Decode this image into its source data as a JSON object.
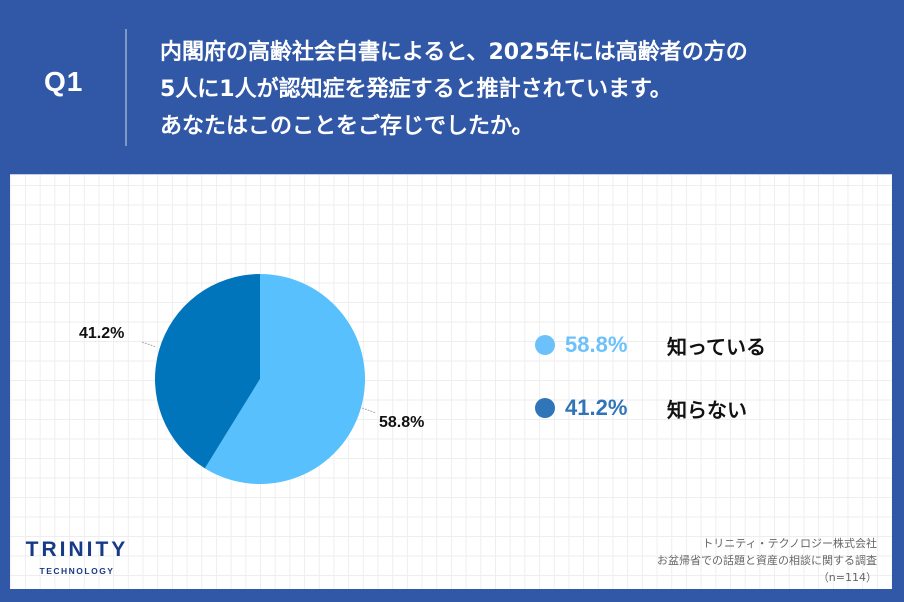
{
  "header": {
    "question_label": "Q1",
    "question_lines": [
      "内閣府の高齢社会白書によると、2025年には高齢者の方の",
      "5人に1人が認知症を発症すると推計されています。",
      "あなたはこのことをご存じでしたか。"
    ]
  },
  "chart_data": {
    "type": "pie",
    "title": "内閣府の高齢社会白書によると、2025年には高齢者の方の5人に1人が認知症を発症すると推計されています。あなたはこのことをご存じでしたか。",
    "categories": [
      "知っている",
      "知らない"
    ],
    "values": [
      58.8,
      41.2
    ],
    "unit": "%",
    "colors": [
      "#57c0fd",
      "#0075bb"
    ],
    "data_labels": [
      "58.8%",
      "41.2%"
    ],
    "legend_position": "right",
    "start_angle_deg": 0,
    "direction": "clockwise",
    "n": 114
  },
  "pie": {
    "labels": {
      "known": "58.8%",
      "unknown": "41.2%"
    }
  },
  "legend": {
    "items": [
      {
        "pct": "58.8%",
        "label": "知っている",
        "color": "#6cc1fb"
      },
      {
        "pct": "41.2%",
        "label": "知らない",
        "color": "#2f75b8"
      }
    ]
  },
  "logo": {
    "main": "TRINITY",
    "sub": "TECHNOLOGY"
  },
  "source": {
    "company": "トリニティ・テクノロジー株式会社",
    "survey": "お盆帰省での話題と資産の相談に関する調査",
    "sample": "（n=114）"
  },
  "colors": {
    "background": "#3157a7",
    "panel": "#ffffff",
    "grid": "#eeeeee",
    "logo": "#173a86"
  }
}
